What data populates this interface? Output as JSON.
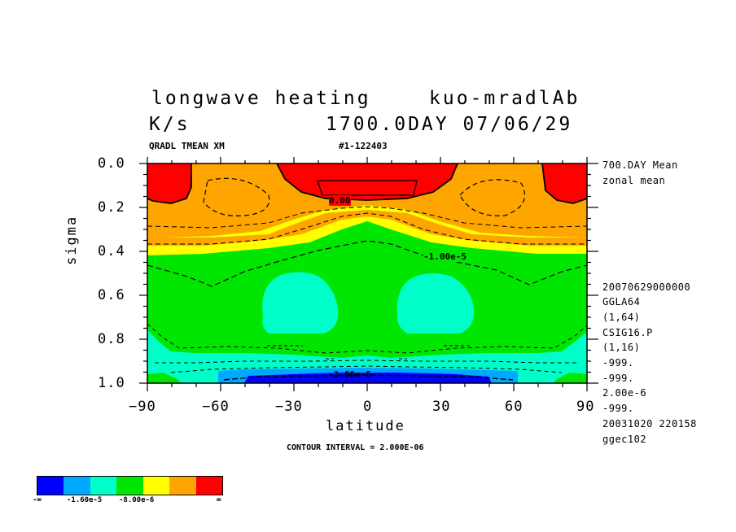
{
  "header": {
    "title_line1_left": "longwave heating",
    "title_line1_right": "kuo-mradlAb",
    "title_line2_left": "K/s",
    "title_line2_right": "1700.0DAY 07/06/29",
    "sub_left": "QRADL TMEAN XM",
    "sub_right": "#1-122403"
  },
  "side_info": {
    "top": [
      "700.DAY Mean",
      "zonal mean"
    ],
    "bottom": [
      "20070629000000",
      "GGLA64",
      "(1,64)",
      "CSIG16.P",
      "(1,16)",
      "-999.",
      "-999.",
      "2.00e-6",
      "-999.",
      "20031020 220158",
      "ggec102"
    ]
  },
  "footer": {
    "contour_interval": "CONTOUR INTERVAL = 2.000E-06"
  },
  "colorbar": {
    "colors": [
      "#0000ff",
      "#00a8ff",
      "#00ffc8",
      "#00e600",
      "#ffff00",
      "#ffa500",
      "#ff0000"
    ],
    "labels": [
      "-∞",
      "-1.60e-5",
      "-8.00e-6",
      "∞"
    ]
  },
  "chart_data": {
    "type": "heatmap",
    "title": "longwave heating",
    "xlabel": "latitude",
    "ylabel": "sigma",
    "xlim": [
      -90,
      90
    ],
    "ylim": [
      1.0,
      0.0
    ],
    "x_ticks": [
      "−90",
      "−60",
      "−30",
      "0",
      "30",
      "60",
      "90"
    ],
    "y_ticks": [
      "0.0",
      "0.2",
      "0.4",
      "0.6",
      "0.8",
      "1.0"
    ],
    "contour_labels": [
      "0.00",
      "-1.00e-5",
      "-2.00e-5"
    ],
    "units": "K/s"
  }
}
